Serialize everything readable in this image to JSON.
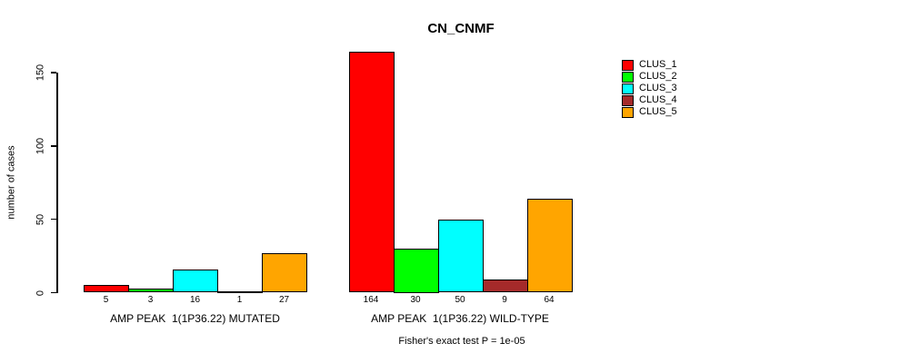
{
  "chart_data": {
    "type": "bar",
    "title": "CN_CNMF",
    "ylabel": "number of cases",
    "ylim": [
      0,
      150
    ],
    "yticks": [
      0,
      50,
      100,
      150
    ],
    "grid": false,
    "legend_position": "top-right",
    "bar_value_labels": true,
    "categories": [
      "AMP PEAK  1(1P36.22) MUTATED",
      "AMP PEAK  1(1P36.22) WILD-TYPE"
    ],
    "series": [
      {
        "name": "CLUS_1",
        "color": "#FF0000",
        "values": [
          5,
          164
        ]
      },
      {
        "name": "CLUS_2",
        "color": "#00FF00",
        "values": [
          3,
          30
        ]
      },
      {
        "name": "CLUS_3",
        "color": "#00FFFF",
        "values": [
          16,
          50
        ]
      },
      {
        "name": "CLUS_4",
        "color": "#A52A2A",
        "values": [
          1,
          9
        ]
      },
      {
        "name": "CLUS_5",
        "color": "#FFA500",
        "values": [
          27,
          64
        ]
      }
    ],
    "footnote": "Fisher's exact test P = 1e-05"
  }
}
